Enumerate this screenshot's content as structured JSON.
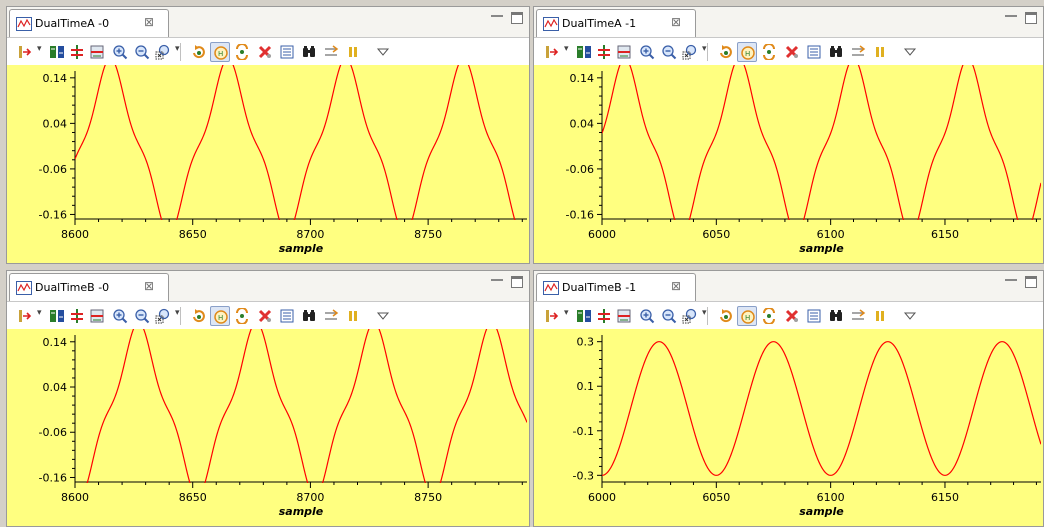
{
  "colors": {
    "plot_bg": "#ffff80",
    "trace": "#ff0000",
    "panel_bg": "#f5f4f0",
    "toolbar_bg": "#ffffff"
  },
  "toolbar_icons": [
    "marker-icon",
    "split-channels-icon",
    "overlay-icon",
    "fit-icon",
    "zoom-in-icon",
    "zoom-out-icon",
    "zoom-box-icon",
    "refresh-icon",
    "auto-scale-icon",
    "sync-icon",
    "clear-icon",
    "properties-icon",
    "find-icon",
    "export-icon",
    "pause-icon",
    "view-menu-icon"
  ],
  "panels": [
    {
      "title": "DualTimeA -0",
      "close_glyph": "⊠",
      "chart_data": {
        "type": "line",
        "xlabel": "sample",
        "ylabel": "",
        "xlim": [
          8600,
          8792
        ],
        "ylim": [
          -0.17,
          0.155
        ],
        "x_ticks": [
          8600,
          8650,
          8700,
          8750
        ],
        "x_tick_labels": [
          "8600",
          "8650",
          "8700",
          "8750"
        ],
        "y_ticks": [
          0.14,
          0.04,
          -0.06,
          -0.16
        ],
        "y_tick_labels": [
          "0.14",
          "0.04",
          "-0.06",
          "-0.16"
        ],
        "period": 50,
        "peak_at": 8615,
        "fundamental_amp": 0.165,
        "harmonic_amp": 0.028,
        "offset": -0.01,
        "grid": false,
        "series": [
          {
            "color": "#ff0000"
          }
        ]
      }
    },
    {
      "title": "DualTimeA -1",
      "close_glyph": "⊠",
      "chart_data": {
        "type": "line",
        "xlabel": "sample",
        "ylabel": "",
        "xlim": [
          6000,
          6192
        ],
        "ylim": [
          -0.17,
          0.155
        ],
        "x_ticks": [
          6000,
          6050,
          6100,
          6150
        ],
        "x_tick_labels": [
          "6000",
          "6050",
          "6100",
          "6150"
        ],
        "y_ticks": [
          0.14,
          0.04,
          -0.06,
          -0.16
        ],
        "y_tick_labels": [
          "0.14",
          "0.04",
          "-0.06",
          "-0.16"
        ],
        "period": 50,
        "peak_at": 6010,
        "fundamental_amp": 0.165,
        "harmonic_amp": 0.028,
        "offset": -0.01,
        "grid": false,
        "series": [
          {
            "color": "#ff0000"
          }
        ]
      }
    },
    {
      "title": "DualTimeB -0",
      "close_glyph": "⊠",
      "chart_data": {
        "type": "line",
        "xlabel": "sample",
        "ylabel": "",
        "xlim": [
          8600,
          8792
        ],
        "ylim": [
          -0.17,
          0.155
        ],
        "x_ticks": [
          8600,
          8650,
          8700,
          8750
        ],
        "x_tick_labels": [
          "8600",
          "8650",
          "8700",
          "8750"
        ],
        "y_ticks": [
          0.14,
          0.04,
          -0.06,
          -0.16
        ],
        "y_tick_labels": [
          "0.14",
          "0.04",
          "-0.06",
          "-0.16"
        ],
        "period": 50,
        "peak_at": 8627,
        "fundamental_amp": 0.165,
        "harmonic_amp": 0.028,
        "offset": -0.01,
        "grid": false,
        "series": [
          {
            "color": "#ff0000"
          }
        ]
      }
    },
    {
      "title": "DualTimeB -1",
      "close_glyph": "⊠",
      "chart_data": {
        "type": "line",
        "xlabel": "sample",
        "ylabel": "",
        "xlim": [
          6000,
          6192
        ],
        "ylim": [
          -0.33,
          0.33
        ],
        "x_ticks": [
          6000,
          6050,
          6100,
          6150
        ],
        "x_tick_labels": [
          "6000",
          "6050",
          "6100",
          "6150"
        ],
        "y_ticks": [
          0.3,
          0.1,
          -0.1,
          -0.3
        ],
        "y_tick_labels": [
          "0.3",
          "0.1",
          "-0.1",
          "-0.3"
        ],
        "period": 50,
        "peak_at": 6025,
        "fundamental_amp": 0.3,
        "harmonic_amp": 0,
        "offset": 0,
        "grid": false,
        "series": [
          {
            "color": "#ff0000"
          }
        ]
      }
    }
  ]
}
